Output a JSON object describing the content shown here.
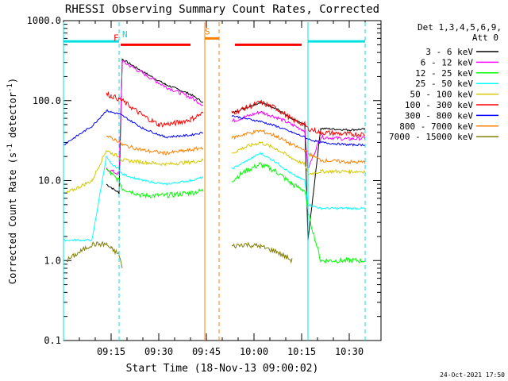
{
  "chart_data": {
    "type": "line",
    "title": "RHESSI Observing Summary Count Rates, Corrected",
    "xlabel": "Start Time (18-Nov-13 09:00:02)",
    "ylabel_main": "Corrected Count Rate (s",
    "ylabel_sup": "-1",
    "ylabel_mid": " detector",
    "ylabel_end": ")",
    "yscale": "log",
    "ylim": [
      0.1,
      1000
    ],
    "y_ticks": [
      {
        "v": 0.1,
        "label": "0.1"
      },
      {
        "v": 1,
        "label": "1.0"
      },
      {
        "v": 10,
        "label": "10.0"
      },
      {
        "v": 100,
        "label": "100.0"
      },
      {
        "v": 1000,
        "label": "1000.0"
      }
    ],
    "xlim": [
      0,
      100
    ],
    "x_ticks": [
      {
        "v": 15,
        "label": "09:15"
      },
      {
        "v": 30,
        "label": "09:30"
      },
      {
        "v": 45,
        "label": "09:45"
      },
      {
        "v": 60,
        "label": "10:00"
      },
      {
        "v": 75,
        "label": "10:15"
      },
      {
        "v": 90,
        "label": "10:30"
      }
    ],
    "legend_header": [
      "Det 1,3,4,5,6,9,",
      "Att 0"
    ],
    "legend_placement": "right",
    "series": [
      {
        "name": "3 - 6 keV",
        "color": "#000000",
        "x": [
          13.5,
          17.5,
          18.5,
          25,
          32,
          40,
          44,
          45,
          53,
          57,
          62,
          67,
          72,
          76,
          77,
          81,
          90,
          95
        ],
        "y": [
          9,
          7,
          330,
          230,
          160,
          120,
          95,
          null,
          70,
          80,
          95,
          80,
          58,
          50,
          1.8,
          45,
          43,
          44
        ]
      },
      {
        "name": "6 - 12 keV",
        "color": "#ff00ff",
        "x": [
          13.5,
          17.5,
          18.5,
          25,
          32,
          40,
          44,
          45,
          53,
          57,
          62,
          67,
          72,
          76,
          77,
          81,
          90,
          95
        ],
        "y": [
          14,
          12,
          310,
          220,
          150,
          110,
          88,
          null,
          55,
          62,
          72,
          62,
          50,
          42,
          14,
          35,
          33,
          34
        ]
      },
      {
        "name": "12 - 25 keV",
        "color": "#00ff00",
        "x": [
          1,
          9,
          13.5,
          15,
          17.5,
          18.5,
          25,
          32,
          40,
          44,
          45,
          53,
          57,
          62,
          67,
          72,
          76,
          77,
          81,
          90,
          95
        ],
        "y": [
          null,
          null,
          14,
          12,
          10,
          8,
          6.5,
          6.5,
          7,
          7.5,
          null,
          10,
          13,
          16,
          13,
          9,
          7.5,
          4,
          1,
          1,
          1
        ]
      },
      {
        "name": "25 - 50 keV",
        "color": "#00ffff",
        "x": [
          0,
          9,
          13.5,
          15,
          17.5,
          18.5,
          25,
          32,
          40,
          44,
          45,
          53,
          57,
          62,
          67,
          72,
          76,
          77,
          81,
          90,
          95
        ],
        "y": [
          1.8,
          1.8,
          20,
          16,
          14,
          12,
          10,
          9,
          10,
          11,
          null,
          14,
          17,
          22,
          17,
          12,
          10,
          5,
          4.5,
          4.5,
          4.5
        ]
      },
      {
        "name": "50 - 100 keV",
        "color": "#d4c800",
        "x": [
          1,
          9,
          13.5,
          15,
          17.5,
          18.5,
          25,
          32,
          40,
          44,
          45,
          53,
          57,
          62,
          67,
          72,
          76,
          77,
          81,
          90,
          95
        ],
        "y": [
          7,
          10,
          24,
          22,
          20,
          18,
          17,
          16,
          17,
          18,
          null,
          22,
          26,
          30,
          25,
          19,
          16,
          12,
          13,
          13,
          13
        ]
      },
      {
        "name": "100 - 300 keV",
        "color": "#ff0000",
        "x": [
          13.5,
          15,
          17.5,
          18.5,
          25,
          30,
          35,
          40,
          44,
          45,
          53,
          57,
          62,
          67,
          72,
          76,
          77,
          81,
          90,
          95
        ],
        "y": [
          120,
          115,
          105,
          100,
          65,
          50,
          52,
          58,
          70,
          null,
          70,
          80,
          95,
          80,
          58,
          50,
          45,
          40,
          38,
          38
        ]
      },
      {
        "name": "300 - 800 keV",
        "color": "#0000ff",
        "x": [
          0,
          9,
          13.5,
          15,
          17.5,
          18.5,
          25,
          32,
          40,
          44,
          45,
          53,
          57,
          62,
          67,
          72,
          76,
          77,
          81,
          90,
          95
        ],
        "y": [
          28,
          48,
          75,
          72,
          68,
          65,
          45,
          35,
          37,
          40,
          null,
          65,
          60,
          55,
          48,
          40,
          35,
          33,
          30,
          28,
          28
        ]
      },
      {
        "name": "800 - 7000 keV",
        "color": "#ff8000",
        "x": [
          13.5,
          15,
          17.5,
          18.5,
          25,
          32,
          40,
          44,
          45,
          53,
          57,
          62,
          67,
          72,
          76,
          77,
          81,
          90,
          95
        ],
        "y": [
          36,
          34,
          31,
          28,
          24,
          22,
          24,
          26,
          null,
          34,
          38,
          42,
          36,
          28,
          24,
          22,
          18,
          17,
          17
        ]
      },
      {
        "name": "7000 - 15000 keV",
        "color": "#808000",
        "x": [
          1,
          9,
          13.5,
          15,
          17.5,
          18.5,
          25,
          32,
          40,
          44,
          45,
          53,
          57,
          62,
          67,
          72,
          76,
          77,
          81,
          90,
          95
        ],
        "y": [
          1,
          1.6,
          1.6,
          1.4,
          1.2,
          0.8,
          null,
          null,
          null,
          null,
          null,
          1.5,
          1.6,
          1.5,
          1.3,
          1,
          null,
          null,
          null,
          null,
          null
        ]
      }
    ],
    "annotations": [
      {
        "label": "N",
        "color": "#00e0e0",
        "x_from": 0,
        "x_to": 17.5,
        "y": 550
      },
      {
        "label": "F",
        "color": "#ff0000",
        "x_from": 18,
        "x_to": 40,
        "y": 500
      },
      {
        "label": "S",
        "color": "#ff8000",
        "x_from": 44.5,
        "x_to": 49,
        "y": 600
      },
      {
        "label": "",
        "color": "#ff0000",
        "x_from": 54,
        "x_to": 75,
        "y": 500
      },
      {
        "label": "",
        "color": "#00e0e0",
        "x_from": 77,
        "x_to": 95,
        "y": 550
      }
    ],
    "vlines": [
      {
        "x": 0,
        "color": "#00e0e0",
        "dash": false
      },
      {
        "x": 17.5,
        "color": "#00e0e0",
        "dash": true
      },
      {
        "x": 44.5,
        "color": "#ff8000",
        "dash": false
      },
      {
        "x": 49,
        "color": "#ff8000",
        "dash": true
      },
      {
        "x": 77,
        "color": "#00e0e0",
        "dash": false
      },
      {
        "x": 95,
        "color": "#00e0e0",
        "dash": true
      }
    ],
    "footer_stamp": "24-Oct-2021 17:50"
  }
}
